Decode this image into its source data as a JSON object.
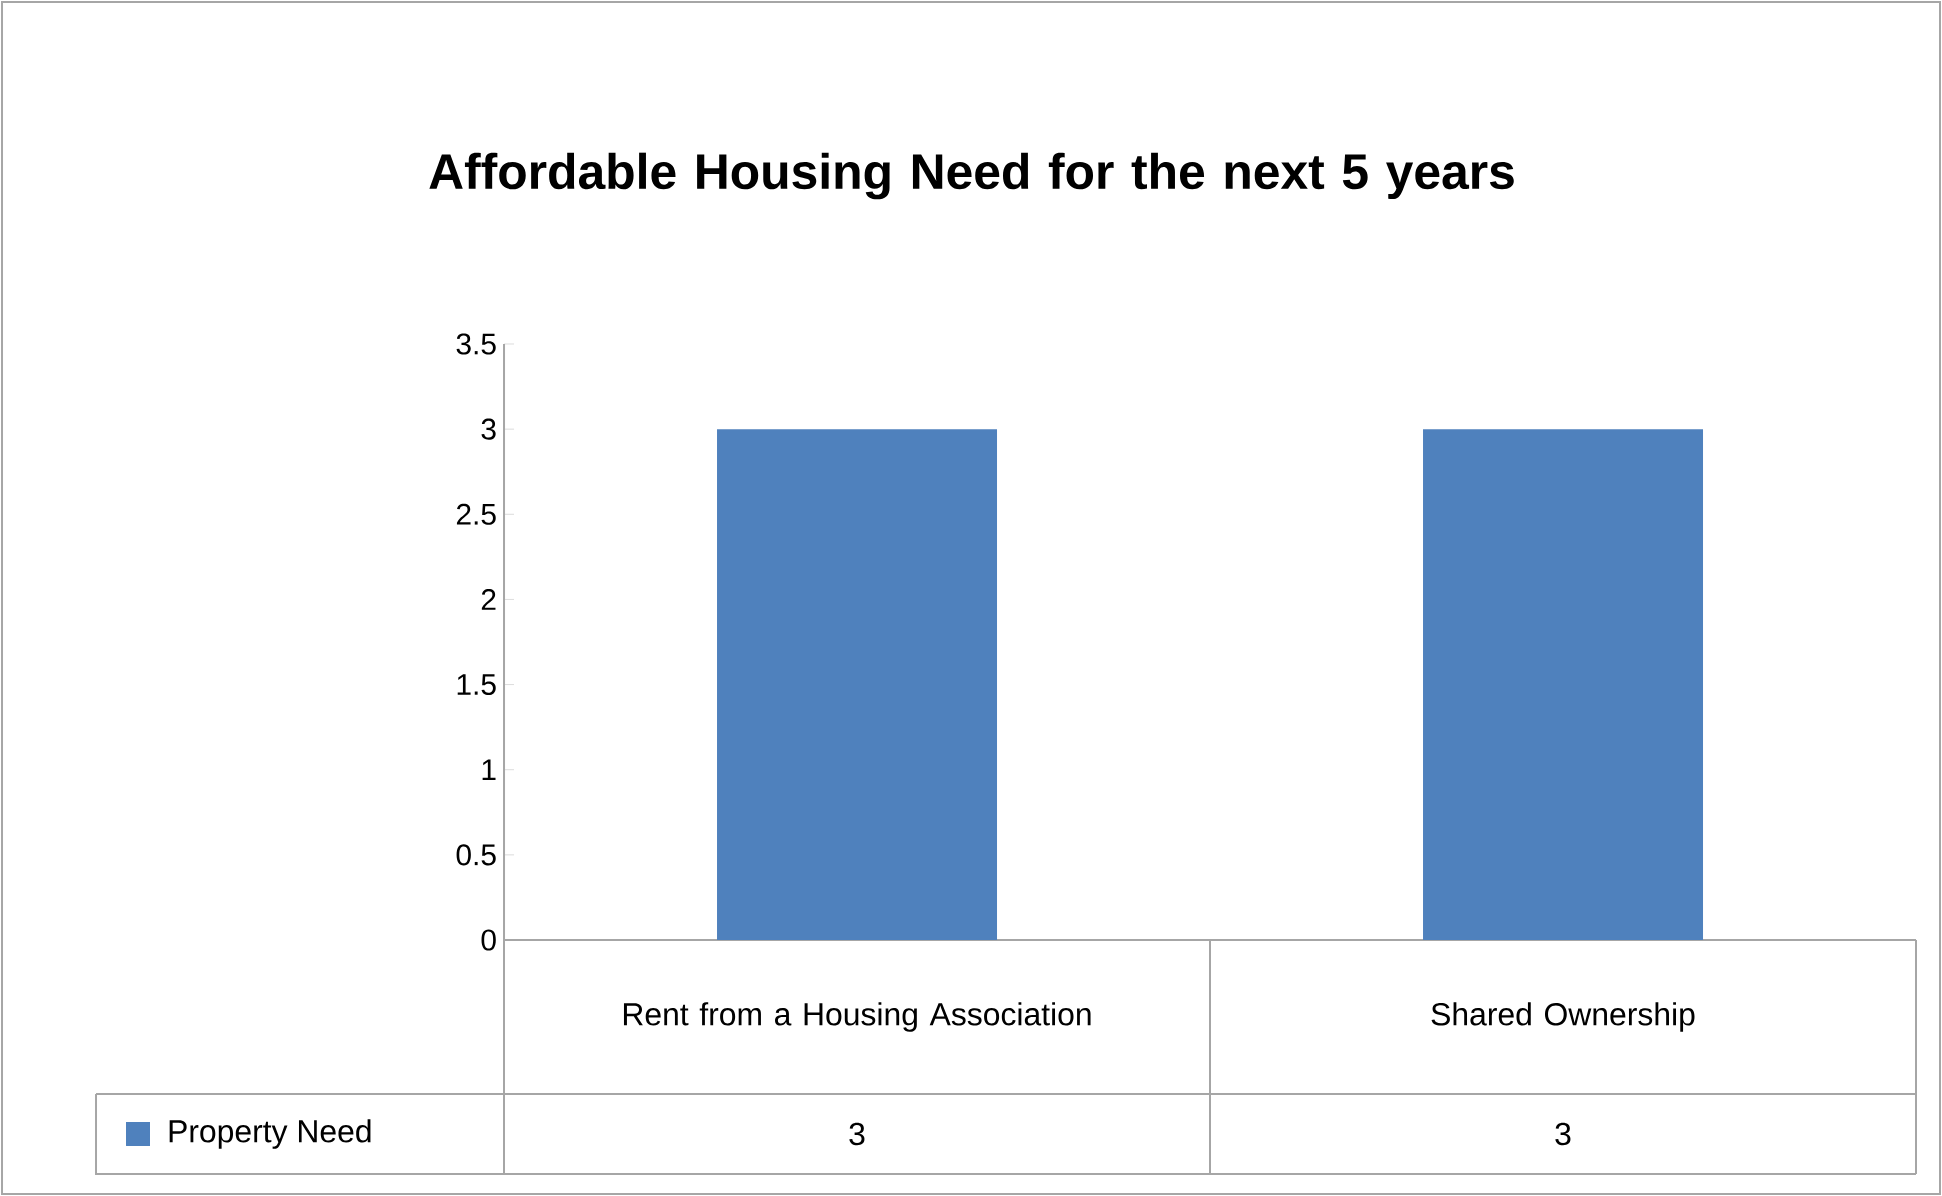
{
  "chart_data": {
    "type": "bar",
    "title": "Affordable Housing Need for the next 5 years",
    "categories": [
      "Rent from a Housing Association",
      "Shared Ownership"
    ],
    "series": [
      {
        "name": "Property Need",
        "color": "#4f81bd",
        "values": [
          3,
          3
        ],
        "value_labels": [
          "3",
          "3"
        ]
      }
    ],
    "ylim": [
      0,
      3.5
    ],
    "yticks": [
      0,
      0.5,
      1,
      1.5,
      2,
      2.5,
      3,
      3.5
    ],
    "legend": "bottom"
  }
}
